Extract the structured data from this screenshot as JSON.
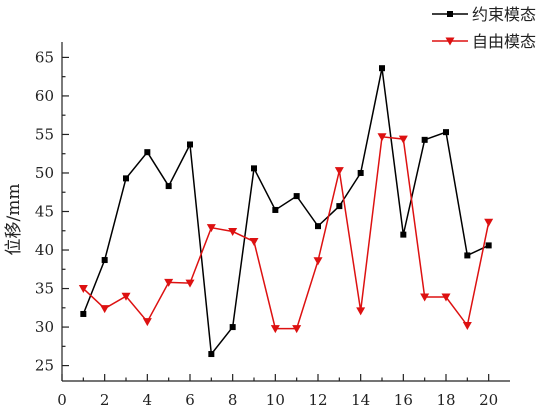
{
  "chart_data": {
    "type": "line",
    "ylabel": "位移/mm",
    "xlabel": "",
    "title": "",
    "xlim": [
      0,
      21
    ],
    "ylim": [
      23,
      67
    ],
    "x_ticks": [
      0,
      2,
      4,
      6,
      8,
      10,
      12,
      14,
      16,
      18,
      20
    ],
    "y_ticks": [
      25,
      30,
      35,
      40,
      45,
      50,
      55,
      60,
      65
    ],
    "legend_position": "top-right",
    "grid": false,
    "x": [
      1,
      2,
      3,
      4,
      5,
      6,
      7,
      8,
      9,
      10,
      11,
      12,
      13,
      14,
      15,
      16,
      17,
      18,
      19,
      20
    ],
    "series": [
      {
        "name": "约束模态",
        "color": "#000000",
        "marker": "square",
        "values": [
          31.7,
          38.7,
          49.3,
          52.7,
          48.3,
          53.7,
          26.5,
          30.0,
          50.6,
          45.2,
          47.0,
          43.1,
          45.7,
          50.0,
          63.6,
          42.0,
          54.3,
          55.3,
          39.3,
          40.6
        ]
      },
      {
        "name": "自由模态",
        "color": "#dd1111",
        "marker": "triangle-down",
        "values": [
          35.0,
          32.4,
          34.0,
          30.7,
          35.8,
          35.7,
          42.9,
          42.4,
          41.1,
          29.8,
          29.8,
          38.6,
          50.3,
          32.1,
          54.7,
          54.4,
          33.9,
          33.9,
          30.2,
          43.6
        ]
      }
    ]
  }
}
